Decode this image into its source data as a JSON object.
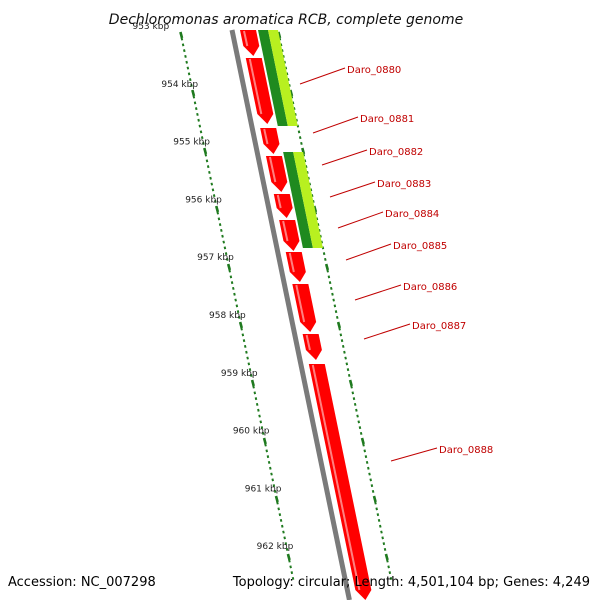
{
  "title": "Dechloromonas aromatica RCB, complete genome",
  "footer": {
    "accession": "Accession: NC_007298",
    "summary": "Topology: circular; Length: 4,501,104 bp; Genes: 4,249"
  },
  "colors": {
    "gene": "#ff0000",
    "gene_light": "#ff8080",
    "backbone": "#7a7a7a",
    "ticks": "#1f7a1f",
    "label": "#c00000",
    "orf_dark": "#1f8a1f",
    "orf_light": "#b8f020"
  },
  "scale_labels": [
    "953 kbp",
    "954 kbp",
    "955 kbp",
    "956 kbp",
    "957 kbp",
    "958 kbp",
    "959 kbp",
    "960 kbp",
    "961 kbp",
    "962 kbp"
  ],
  "gene_labels": [
    "Daro_0880",
    "Daro_0881",
    "Daro_0882",
    "Daro_0883",
    "Daro_0884",
    "Daro_0885",
    "Daro_0886",
    "Daro_0887",
    "Daro_0888"
  ]
}
